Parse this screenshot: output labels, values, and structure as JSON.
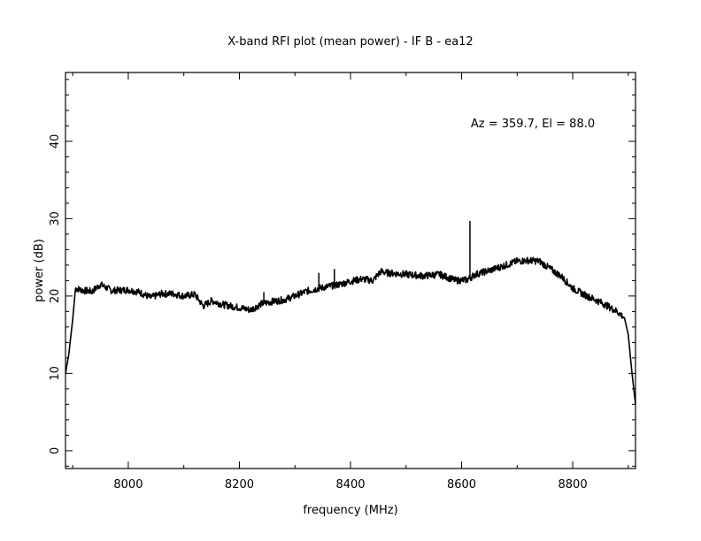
{
  "chart_data": {
    "type": "line",
    "title": "X-band RFI plot (mean power) - IF B - ea12",
    "xlabel": "frequency (MHz)",
    "ylabel": "power (dB)",
    "annotation": "Az = 359.7, El = 88.0",
    "xlim": [
      7887,
      8913
    ],
    "ylim": [
      -2.3,
      48.9
    ],
    "x_ticks": [
      8000,
      8200,
      8400,
      8600,
      8800
    ],
    "x_tick_labels": [
      "8000",
      "8200",
      "8400",
      "8600",
      "8800"
    ],
    "x_minor_step": 100,
    "y_ticks": [
      0,
      10,
      20,
      30,
      40
    ],
    "y_tick_labels": [
      "0",
      "10",
      "20",
      "30",
      "40"
    ],
    "y_minor_step": 2,
    "grid": false,
    "line_color": "#000000",
    "series": [
      {
        "name": "mean power",
        "x": [
          7887,
          7893,
          7900,
          7905,
          7920,
          7935,
          7950,
          7970,
          8000,
          8020,
          8040,
          8060,
          8080,
          8100,
          8120,
          8135,
          8150,
          8170,
          8200,
          8220,
          8240,
          8260,
          8280,
          8300,
          8320,
          8350,
          8380,
          8400,
          8420,
          8440,
          8455,
          8465,
          8500,
          8530,
          8560,
          8590,
          8610,
          8625,
          8650,
          8680,
          8700,
          8720,
          8740,
          8760,
          8780,
          8800,
          8820,
          8850,
          8880,
          8893,
          8900,
          8906,
          8913
        ],
        "y": [
          10,
          12.5,
          17,
          21,
          20.7,
          20.6,
          21.5,
          20.7,
          20.8,
          20.5,
          19.8,
          20.3,
          20.3,
          20.0,
          20.2,
          18.7,
          19.4,
          18.9,
          18.5,
          18.2,
          19.0,
          19.3,
          19.5,
          20.0,
          20.6,
          21.1,
          21.5,
          21.9,
          22.2,
          22.0,
          23.2,
          23.0,
          22.8,
          22.6,
          22.8,
          22.0,
          22.1,
          22.8,
          23.3,
          24.0,
          24.5,
          24.6,
          24.5,
          23.5,
          22.5,
          21.0,
          20.2,
          19.2,
          18.0,
          17.2,
          15.0,
          10.5,
          6.0
        ]
      }
    ],
    "spikes": [
      {
        "x": 8244,
        "y": 20.5
      },
      {
        "x": 8343,
        "y": 23.0
      },
      {
        "x": 8371,
        "y": 23.5
      },
      {
        "x": 8615,
        "y": 29.7
      }
    ]
  }
}
